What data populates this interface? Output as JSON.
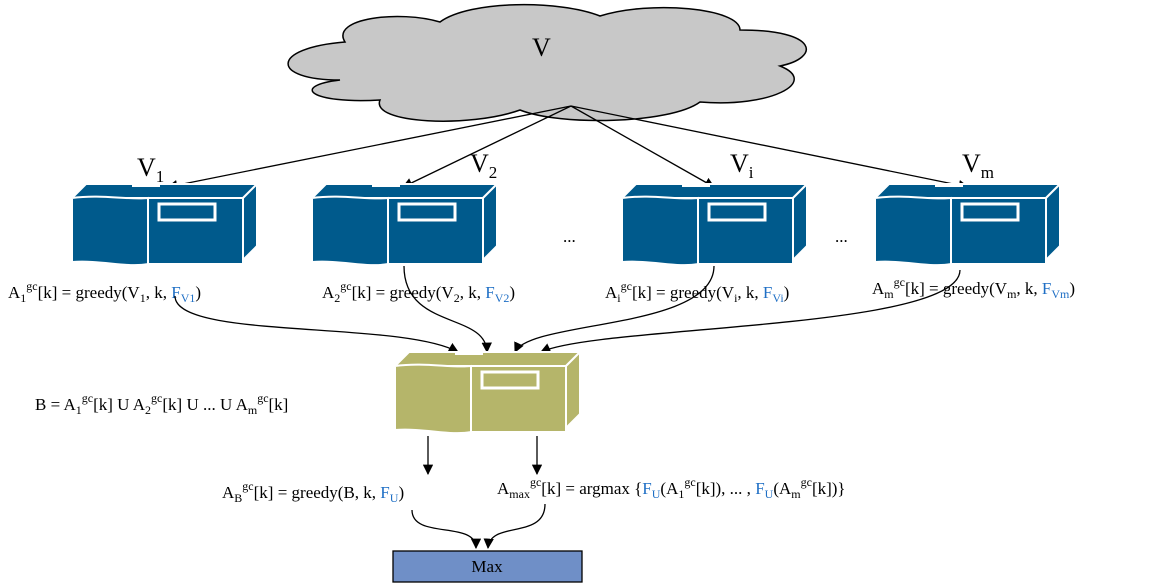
{
  "cloud_label": "V",
  "ellipsis": "...",
  "partitions": [
    {
      "name": "V",
      "sub": "1"
    },
    {
      "name": "V",
      "sub": "2"
    },
    {
      "name": "V",
      "sub": "i"
    },
    {
      "name": "V",
      "sub": "m"
    }
  ],
  "greedy_labels": [
    {
      "a": "A",
      "asub": "1",
      "sup": "gc",
      "mid": "[k] = greedy(V",
      "vsub": "1",
      "tail": ", k, ",
      "f": "F",
      "fsub": "V1",
      "close": ")"
    },
    {
      "a": "A",
      "asub": "2",
      "sup": "gc",
      "mid": "[k] = greedy(V",
      "vsub": "2",
      "tail": ", k, ",
      "f": "F",
      "fsub": "V2",
      "close": ")"
    },
    {
      "a": "A",
      "asub": "i",
      "sup": "gc",
      "mid": "[k] = greedy(V",
      "vsub": "i",
      "tail": ", k, ",
      "f": "F",
      "fsub": "Vi",
      "close": ")"
    },
    {
      "a": "A",
      "asub": "m",
      "sup": "gc",
      "mid": "[k] = greedy(V",
      "vsub": "m",
      "tail": ", k, ",
      "f": "F",
      "fsub": "Vm",
      "close": ")"
    }
  ],
  "union_label": {
    "p0": "B = A",
    "s1": "1",
    "g1": "gc",
    "p1": "[k] U A",
    "s2": "2",
    "g2": "gc",
    "p2": "[k] U ... U A",
    "s3": "m",
    "g3": "gc",
    "p3": "[k]"
  },
  "greedy_b": {
    "a": "A",
    "asub": "B",
    "sup": "gc",
    "mid": "[k] = greedy(B, k, ",
    "f": "F",
    "fsub": "U",
    "close": ")"
  },
  "argmax": {
    "a": "A",
    "asub": "max",
    "sup": "gc",
    "mid": "[k] = argmax {",
    "f1": "F",
    "f1sub": "U",
    "p1": "(A",
    "s1": "1",
    "g1": "gc",
    "p2": "[k]), ... , ",
    "f2": "F",
    "f2sub": "U",
    "p3": "(A",
    "s2": "m",
    "g2": "gc",
    "p4": "[k])}"
  },
  "max_label": "Max",
  "colors": {
    "server_blue": "#005a8c",
    "server_olive": "#b5b56a",
    "max_box": "#6f8fc7",
    "cloud": "#c8c8c8",
    "f_blue": "#1f6fc5"
  }
}
